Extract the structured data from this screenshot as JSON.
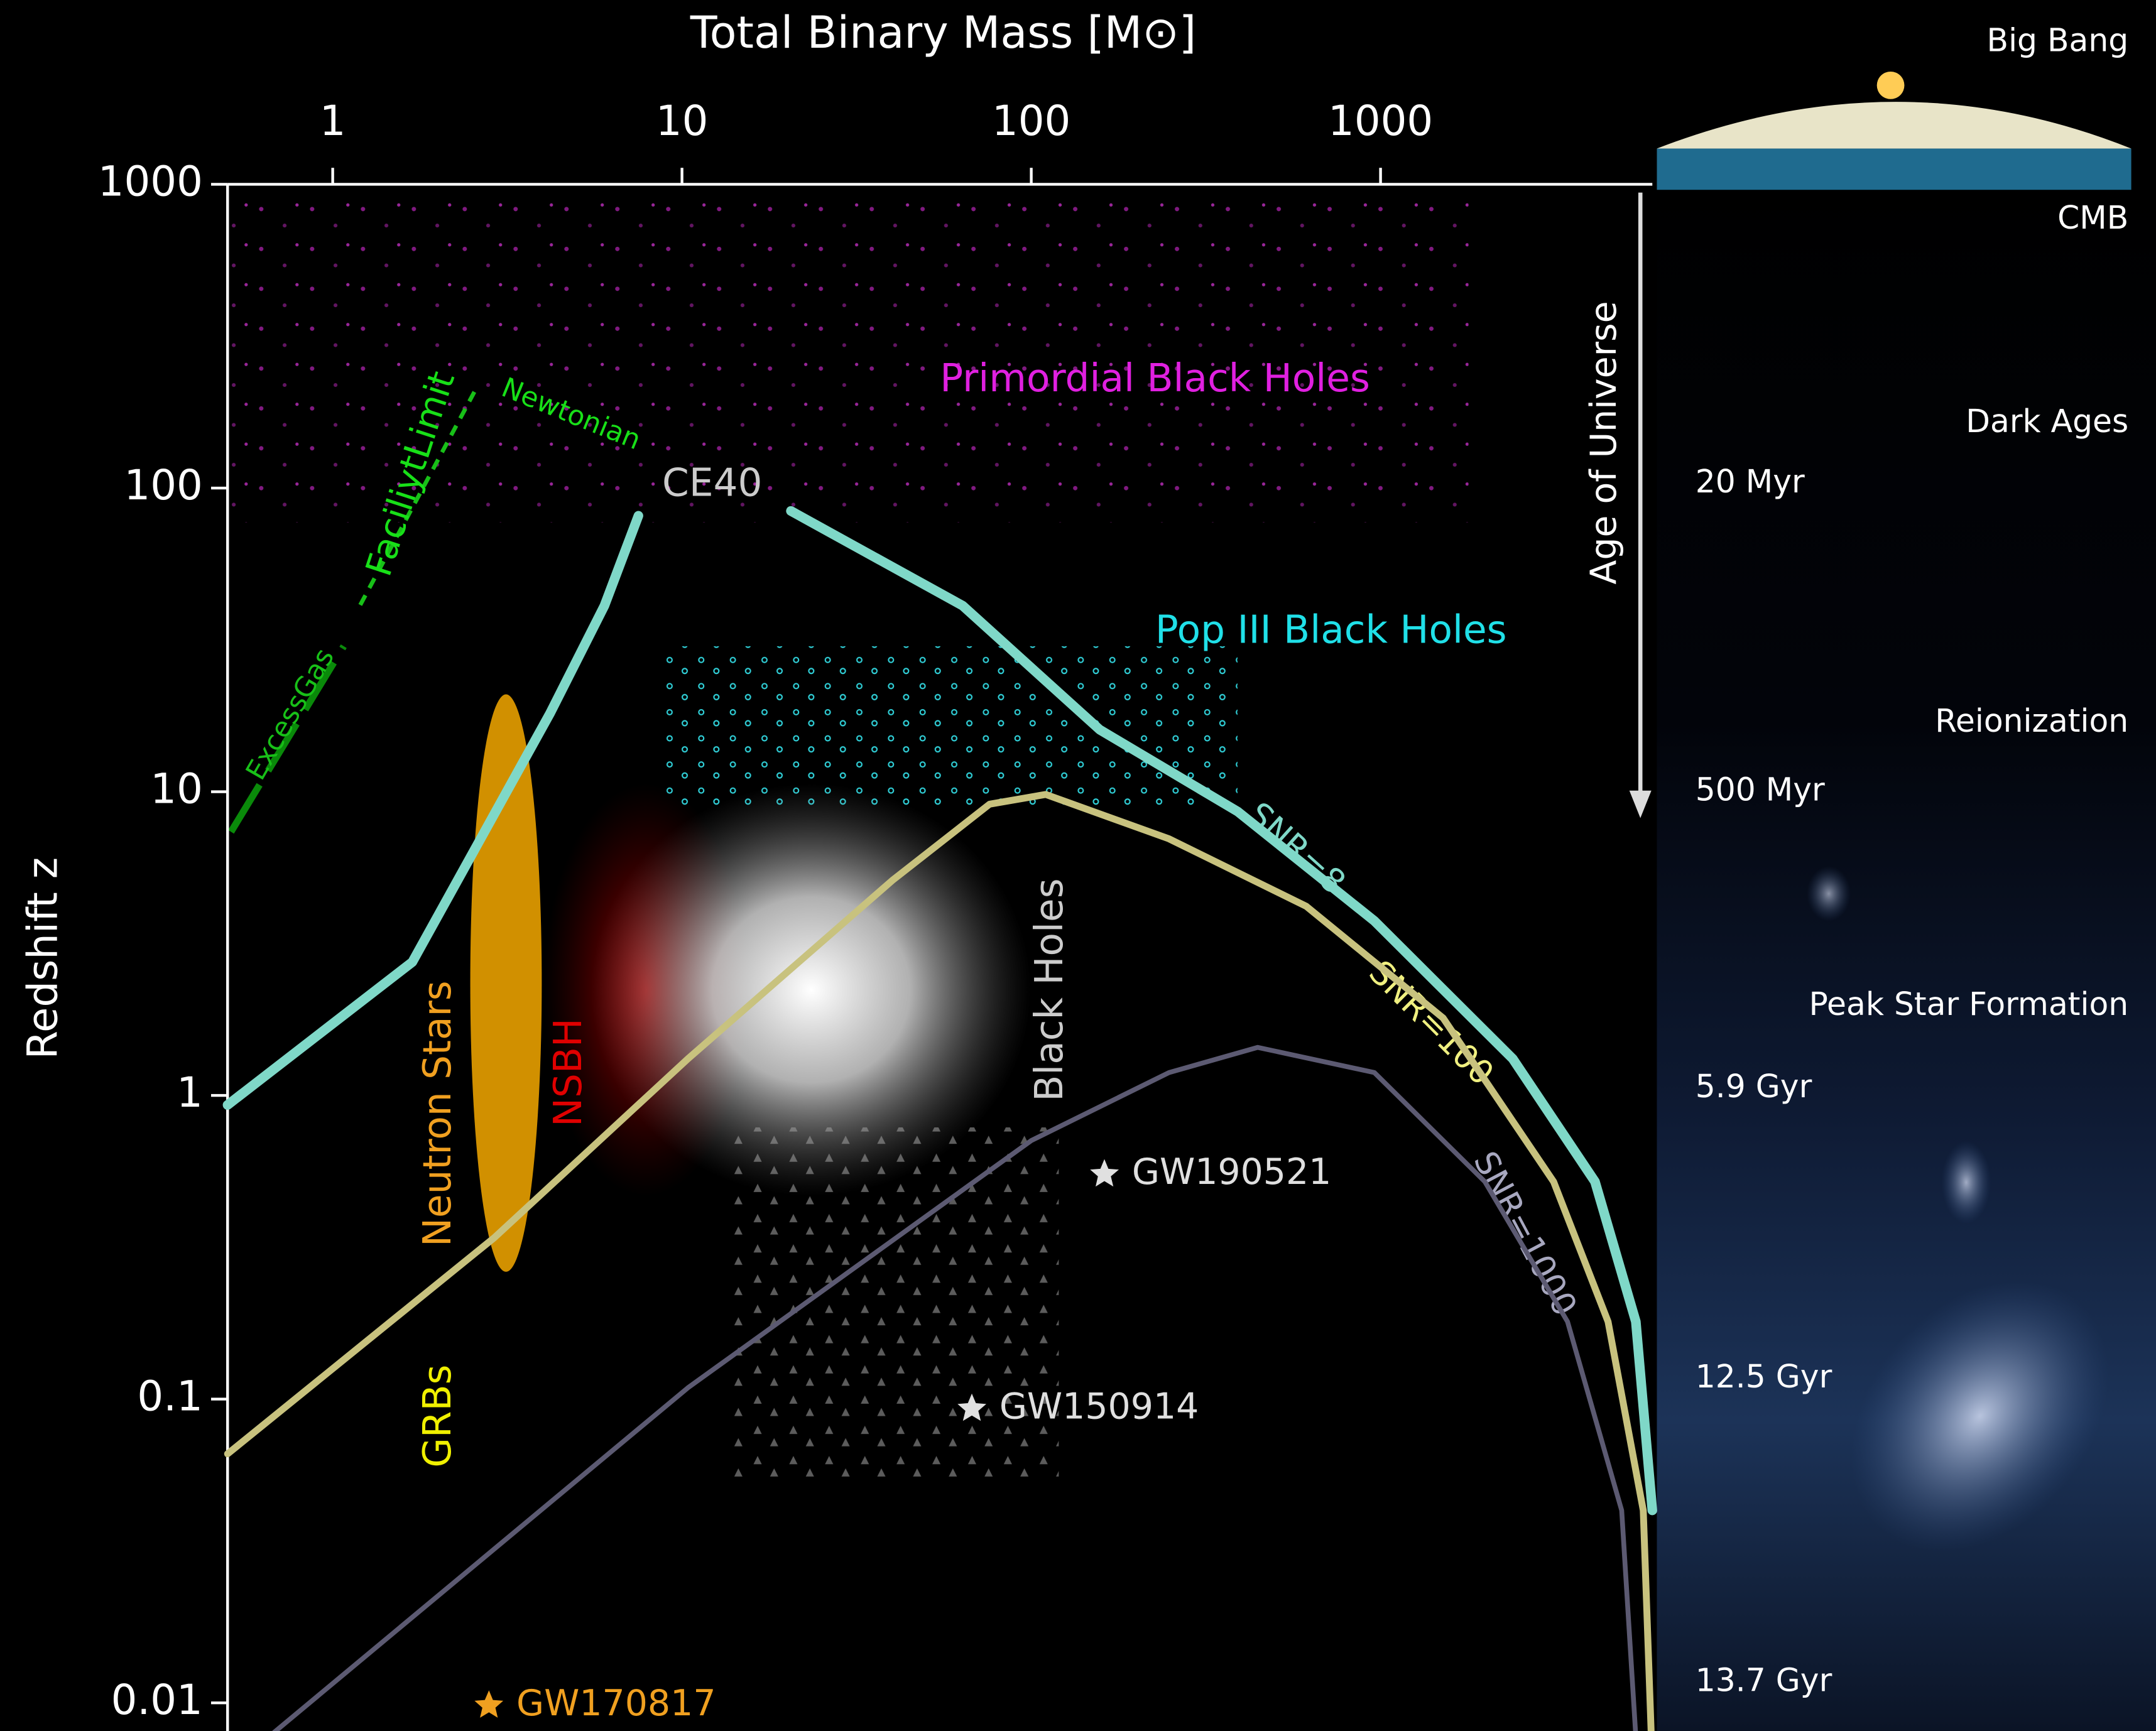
{
  "chart_data": {
    "type": "line",
    "xlabel": "Total Binary Mass [M⊙]",
    "ylabel": "Redshift z",
    "xscale": "log",
    "yscale": "log",
    "xlim": [
      0.5,
      6000
    ],
    "ylim": [
      0.008,
      1000
    ],
    "xticks": [
      1,
      10,
      100,
      1000
    ],
    "yticks": [
      0.01,
      0.1,
      1,
      10,
      100,
      1000
    ],
    "series": [
      {
        "name": "SNR=8",
        "color": "#7fd8c8",
        "x": [
          0.5,
          1.69,
          4.19,
          6.0,
          7.5,
          14,
          20.5,
          63.6,
          157,
          390,
          959,
          2390,
          4110,
          5380,
          6000
        ],
        "values": [
          0.93,
          2.75,
          18.1,
          41,
          81,
          null,
          84,
          41,
          16,
          8.6,
          3.76,
          1.32,
          0.52,
          0.18,
          0.043
        ]
      },
      {
        "name": "SNR=100",
        "color": "#c8c27e",
        "x": [
          0.5,
          2.9,
          10.4,
          40,
          76,
          110,
          248,
          612,
          1510,
          3130,
          4480,
          5650,
          5950
        ],
        "values": [
          0.066,
          0.34,
          1.32,
          5.1,
          9.1,
          9.8,
          7.0,
          4.2,
          1.8,
          0.52,
          0.18,
          0.043,
          0.0081
        ]
      },
      {
        "name": "SNR=1000",
        "color": "#5c5a72",
        "x": [
          0.68,
          10.4,
          100,
          248,
          445,
          960,
          1990,
          3430,
          4900,
          5370
        ],
        "values": [
          0.008,
          0.109,
          0.71,
          1.19,
          1.44,
          1.19,
          0.52,
          0.18,
          0.043,
          0.008
        ]
      }
    ],
    "events": [
      {
        "name": "GW190521",
        "x": 162,
        "value": 0.55,
        "color": "#e0e0e0"
      },
      {
        "name": "GW150914",
        "x": 67.6,
        "value": 0.093,
        "color": "#e0e0e0"
      },
      {
        "name": "GW170817",
        "x": 2.8,
        "value": 0.0098,
        "color": "#f0a020"
      }
    ],
    "annotations": {
      "detector": "CE40",
      "primordial": "Primordial Black Holes",
      "pop3": "Pop III Black Holes",
      "neutron_stars": "Neutron Stars",
      "nsbh": "NSBH",
      "black_holes": "Black Holes",
      "grbs": "GRBs",
      "excess_gas": "ExcessGas",
      "facility_limit": "FaciliytLimit",
      "newtonian": "Newtonian"
    },
    "timeline": {
      "axis_label": "Age of Universe",
      "epochs": [
        "Big Bang",
        "CMB",
        "Dark Ages",
        "Reionization",
        "Peak Star Formation"
      ],
      "ages": [
        "20 Myr",
        "500 Myr",
        "5.9 Gyr",
        "12.5 Gyr",
        "13.7 Gyr"
      ]
    }
  }
}
